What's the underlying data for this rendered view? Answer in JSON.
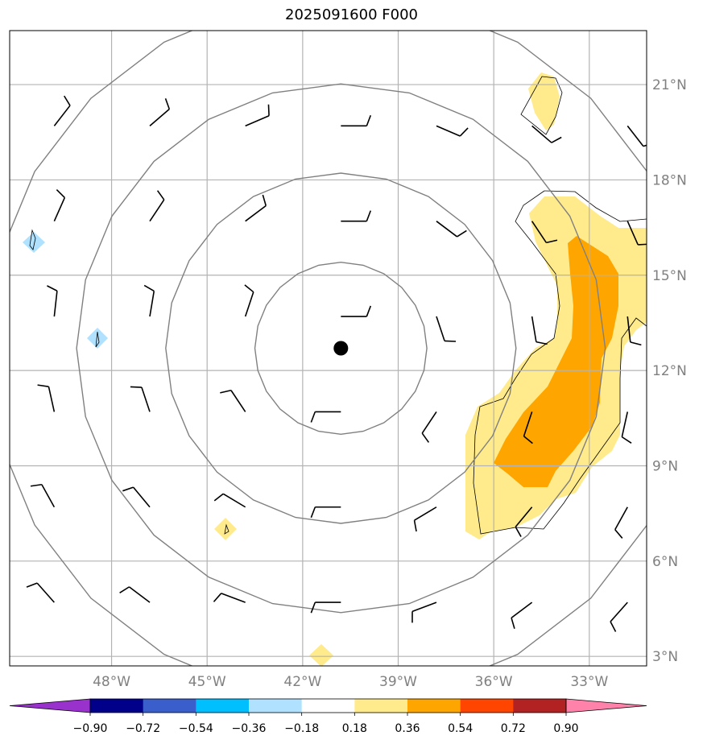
{
  "title": "2025091600 F000",
  "map": {
    "lon_range": [
      -51.2,
      -31.2
    ],
    "lat_range": [
      2.7,
      22.7
    ],
    "center": {
      "lon": -40.8,
      "lat": 12.7
    },
    "lon_ticks": [
      {
        "value": -48,
        "label": "48°W"
      },
      {
        "value": -45,
        "label": "45°W"
      },
      {
        "value": -42,
        "label": "42°W"
      },
      {
        "value": -39,
        "label": "39°W"
      },
      {
        "value": -36,
        "label": "36°W"
      },
      {
        "value": -33,
        "label": "33°W"
      }
    ],
    "lat_ticks": [
      {
        "value": 3,
        "label": "3°N"
      },
      {
        "value": 6,
        "label": "6°N"
      },
      {
        "value": 9,
        "label": "9°N"
      },
      {
        "value": 12,
        "label": "12°N"
      },
      {
        "value": 15,
        "label": "15°N"
      },
      {
        "value": 18,
        "label": "18°N"
      },
      {
        "value": 21,
        "label": "21°N"
      }
    ],
    "range_rings_deg": [
      2.7,
      5.5,
      8.3,
      11.1
    ],
    "grid": true,
    "barb_lons": [
      -49.8,
      -46.8,
      -43.8,
      -40.8,
      -37.8,
      -34.8,
      -31.8
    ],
    "barb_lats": [
      19.7,
      16.7,
      13.7,
      10.7,
      7.7,
      4.7
    ]
  },
  "colorbar": {
    "levels": [
      "−0.90",
      "−0.72",
      "−0.54",
      "−0.36",
      "−0.18",
      "0.18",
      "0.36",
      "0.54",
      "0.72",
      "0.90"
    ],
    "colors": [
      "#9932cc",
      "#00008b",
      "#3a5fcd",
      "#00bfff",
      "#b0e2ff",
      "#ffffff",
      "#ffeb8c",
      "#ffa500",
      "#ff4500",
      "#b22222",
      "#ff82ab"
    ]
  }
}
